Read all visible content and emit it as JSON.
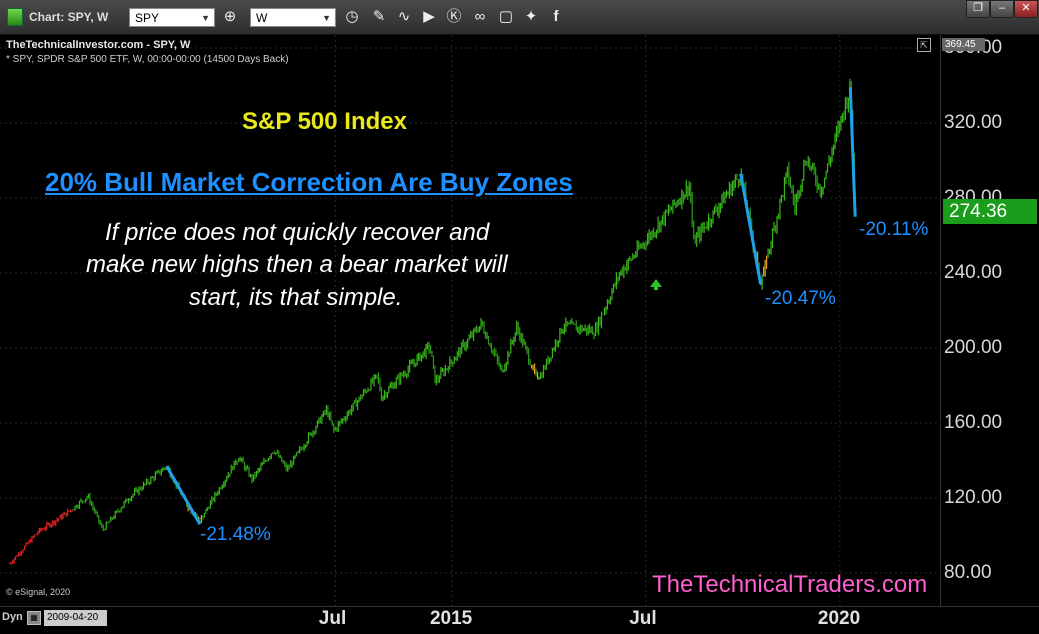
{
  "window": {
    "chart_label": "Chart: SPY, W",
    "symbol_value": "SPY",
    "interval_value": "W",
    "restore_btn": "❐",
    "minimize_btn": "–",
    "close_btn": "✕"
  },
  "toolbar_icons": [
    "crosshair-icon",
    "clock-icon",
    "pencil-icon",
    "line-icon",
    "play-icon",
    "alert-icon",
    "link-icon",
    "share-icon",
    "twitter-icon",
    "facebook-icon"
  ],
  "header": {
    "title": "TheTechnicalInvestor.com - SPY, W",
    "subtitle": "* SPY, SPDR S&P 500 ETF, W, 00:00-00:00 (14500 Days Back)",
    "high_label": "369.45"
  },
  "annotations": {
    "index_title": "S&P 500 Index",
    "headline": "20% Bull Market Correction Are Buy Zones",
    "body_line1": "If price does not quickly recover and",
    "body_line2": "make new highs then a bear market will",
    "body_line3": "start, its that simple.",
    "pct1": "-21.48%",
    "pct2": "-20.47%",
    "pct3": "-20.11%",
    "copyright": "© eSignal, 2020",
    "watermark": "TheTechnicalTraders.com"
  },
  "colors": {
    "up": "#39b81a",
    "down": "#e8231f",
    "transition": "#e0a020",
    "drawdown_line": "#1ea3ea",
    "annotation_text": "#1e90ff",
    "title_yellow": "#e8e81a",
    "watermark": "#ff5fd0",
    "price_badge": "#1a9d1a"
  },
  "bottom": {
    "dyn_label": "Dyn",
    "date_value": "2009-04-20"
  },
  "chart_data": {
    "type": "line",
    "title": "",
    "xlabel": "",
    "ylabel": "",
    "y_ticks": [
      "80.00",
      "120.00",
      "160.00",
      "200.00",
      "240.00",
      "280.00",
      "320.00",
      "360.00"
    ],
    "ylim": [
      72,
      372
    ],
    "x_ticks": [
      "Jul",
      "2015",
      "Jul",
      "2020"
    ],
    "last_price": "274.36",
    "series": [
      {
        "values": [
          {
            "x": "2009-04-20",
            "y": 85
          },
          {
            "x": "2009-09-01",
            "y": 102
          },
          {
            "x": "2010-01-15",
            "y": 112
          },
          {
            "x": "2010-04-23",
            "y": 121
          },
          {
            "x": "2010-07-02",
            "y": 103
          },
          {
            "x": "2010-11-01",
            "y": 120
          },
          {
            "x": "2011-04-29",
            "y": 137
          },
          {
            "x": "2011-08-12",
            "y": 114
          },
          {
            "x": "2011-10-03",
            "y": 108
          },
          {
            "x": "2012-04-02",
            "y": 142
          },
          {
            "x": "2012-06-04",
            "y": 130
          },
          {
            "x": "2012-09-14",
            "y": 146
          },
          {
            "x": "2012-11-16",
            "y": 135
          },
          {
            "x": "2013-05-21",
            "y": 167
          },
          {
            "x": "2013-06-24",
            "y": 156
          },
          {
            "x": "2014-01-15",
            "y": 185
          },
          {
            "x": "2014-02-03",
            "y": 174
          },
          {
            "x": "2014-09-19",
            "y": 201
          },
          {
            "x": "2014-10-15",
            "y": 182
          },
          {
            "x": "2015-05-20",
            "y": 213
          },
          {
            "x": "2015-08-24",
            "y": 187
          },
          {
            "x": "2015-11-03",
            "y": 211
          },
          {
            "x": "2016-02-11",
            "y": 182
          },
          {
            "x": "2016-06-08",
            "y": 212
          },
          {
            "x": "2016-11-04",
            "y": 209
          },
          {
            "x": "2017-03-01",
            "y": 240
          },
          {
            "x": "2018-01-26",
            "y": 287
          },
          {
            "x": "2018-02-09",
            "y": 256
          },
          {
            "x": "2018-09-21",
            "y": 293
          },
          {
            "x": "2018-12-24",
            "y": 234
          },
          {
            "x": "2019-04-30",
            "y": 294
          },
          {
            "x": "2019-06-03",
            "y": 275
          },
          {
            "x": "2019-07-26",
            "y": 302
          },
          {
            "x": "2019-10-03",
            "y": 284
          },
          {
            "x": "2020-02-19",
            "y": 339
          },
          {
            "x": "2020-03-06",
            "y": 295
          },
          {
            "x": "2020-03-13",
            "y": 274.36
          }
        ]
      }
    ]
  }
}
